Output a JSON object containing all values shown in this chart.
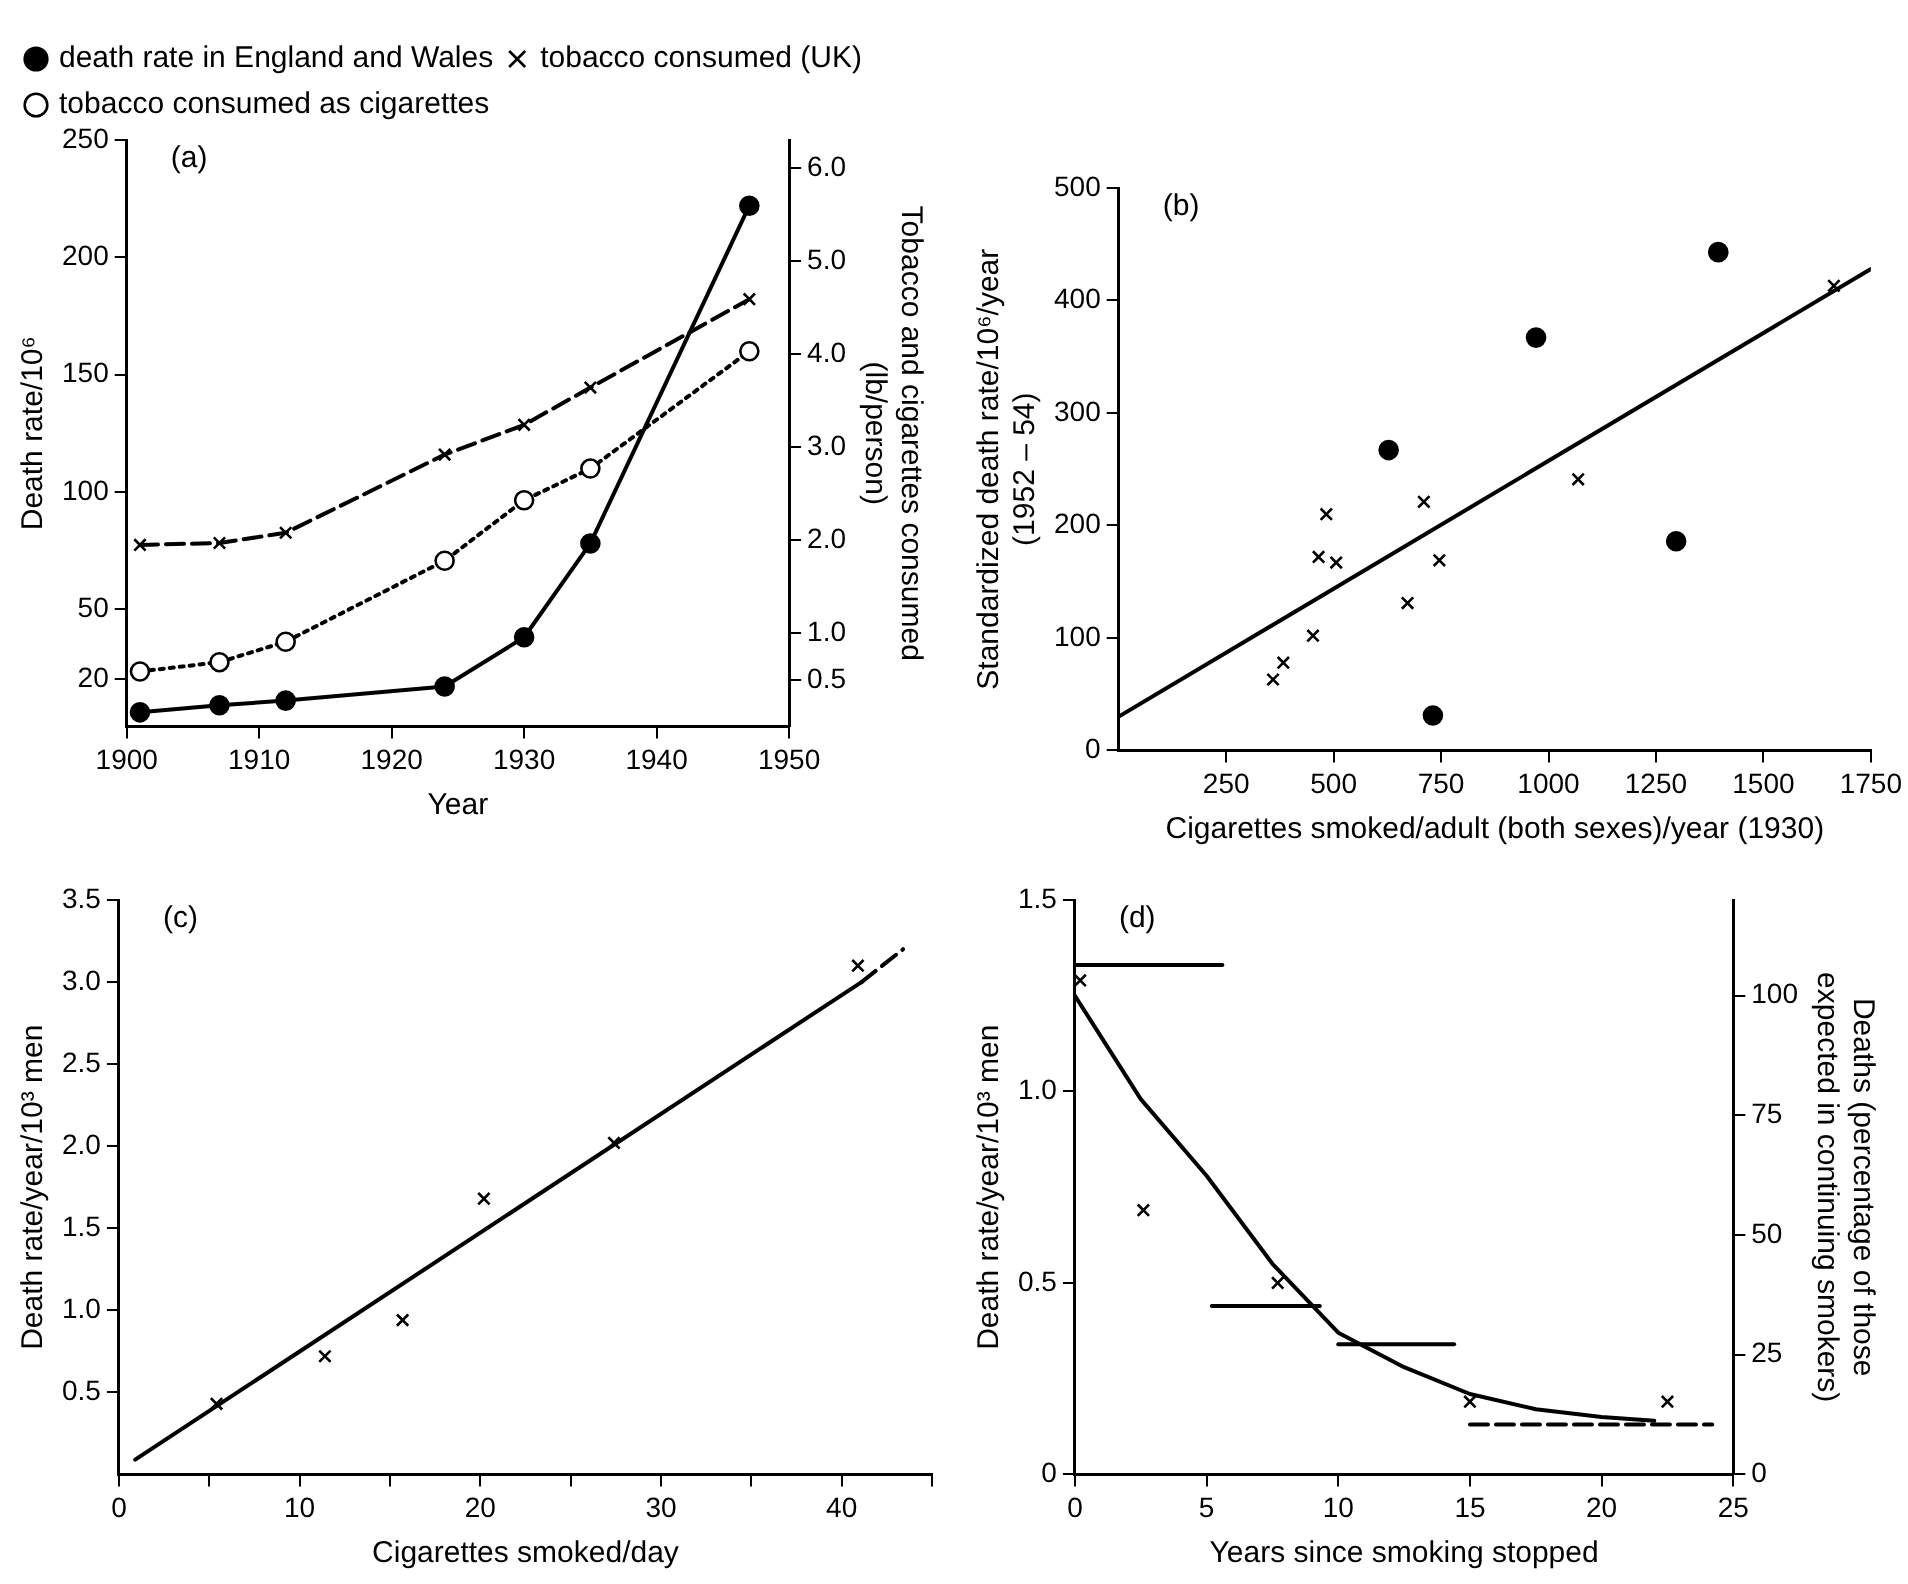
{
  "chart_data": [
    {
      "type": "line",
      "xlabel": "Year",
      "ylabel": "Death rate/10⁶",
      "y2label": "Tobacco and cigarettes consumed\n(lb/person)",
      "annotations": [
        "(a)"
      ],
      "xlim": [
        1900,
        1950
      ],
      "xticks": [
        1900,
        1910,
        1920,
        1930,
        1940,
        1950
      ],
      "ylim": [
        0,
        250
      ],
      "yticks": [
        20,
        50,
        100,
        150,
        200,
        250
      ],
      "y2lim": [
        0,
        6.3
      ],
      "y2ticks": [
        0.5,
        {
          "value": 1,
          "label": "1.0"
        },
        {
          "value": 2,
          "label": "2.0"
        },
        {
          "value": 3,
          "label": "3.0"
        },
        {
          "value": 4,
          "label": "4.0"
        },
        {
          "value": 5,
          "label": "5.0"
        },
        {
          "value": 6,
          "label": "6.0"
        }
      ],
      "grid": false,
      "legend": "top left",
      "series": [
        {
          "name": "death rate in England and Wales",
          "color": "#000000",
          "marker": "circle",
          "line_style": "solid",
          "x": [
            1901,
            1907,
            1912,
            1924,
            1930,
            1935,
            1947
          ],
          "values": [
            6,
            9,
            11,
            17,
            38,
            78,
            222
          ]
        },
        {
          "name": "tobacco consumed (UK)",
          "color": "#000000",
          "marker": "cross",
          "line_style": "dashed",
          "axis": "y2",
          "x": [
            1901,
            1907,
            1912,
            1924,
            1930,
            1935,
            1947
          ],
          "values": [
            1.95,
            1.97,
            2.08,
            2.92,
            3.24,
            3.64,
            4.59
          ]
        },
        {
          "name": "tobacco consumed as cigarettes",
          "color": "#000000",
          "marker": "circle_open",
          "line_style": "dotted",
          "axis": "y2",
          "x": [
            1901,
            1907,
            1912,
            1924,
            1930,
            1935,
            1947
          ],
          "values": [
            0.59,
            0.69,
            0.91,
            1.78,
            2.43,
            2.77,
            4.03
          ]
        }
      ]
    },
    {
      "type": "scatter",
      "xlabel": "Cigarettes smoked/adult (both sexes)/year (1930)",
      "ylabel": "Standardized death rate/10⁶/year\n(1952 – 54)",
      "annotations": [
        "(b)"
      ],
      "xlim": [
        0,
        1750
      ],
      "xticks": [
        250,
        500,
        750,
        1000,
        1250,
        1500,
        1750
      ],
      "ylim": [
        0,
        500
      ],
      "yticks": [
        0,
        100,
        200,
        300,
        400,
        500
      ],
      "grid": false,
      "series": [
        {
          "color": "#000000",
          "marker": "circle",
          "x": [
            628,
            971,
            1395,
            1297,
            731
          ],
          "values": [
            267,
            367,
            443,
            186,
            31
          ]
        },
        {
          "color": "#000000",
          "marker": "cross",
          "x": [
            359,
            383,
            452,
            465,
            483,
            506,
            672,
            710,
            746,
            1069,
            1664
          ],
          "values": [
            63,
            78,
            102,
            172,
            210,
            167,
            131,
            221,
            169,
            241,
            413
          ]
        },
        {
          "type": "line",
          "color": "#000000",
          "marker": "none",
          "line_style": "solid",
          "x": [
            0,
            1750
          ],
          "values": [
            30,
            428
          ]
        }
      ]
    },
    {
      "type": "scatter",
      "xlabel": "Cigarettes smoked/day",
      "ylabel": "Death rate/year/10³ men",
      "annotations": [
        "(c)"
      ],
      "xlim": [
        0,
        45
      ],
      "xticks": [
        0,
        {
          "value": 5,
          "label": null
        },
        10,
        {
          "value": 15,
          "label": null
        },
        20,
        {
          "value": 25,
          "label": null
        },
        30,
        {
          "value": 35,
          "label": null
        },
        40,
        {
          "value": 45,
          "label": null
        }
      ],
      "ylim": [
        0,
        3.5
      ],
      "yticks": [
        0.5,
        {
          "value": 1,
          "label": "1.0"
        },
        1.5,
        {
          "value": 2,
          "label": "2.0"
        },
        2.5,
        {
          "value": 3,
          "label": "3.0"
        },
        3.5
      ],
      "grid": false,
      "series": [
        {
          "color": "#000000",
          "marker": "cross",
          "x": [
            5.4,
            11.4,
            15.7,
            20.2,
            27.4,
            40.9
          ],
          "values": [
            0.43,
            0.72,
            0.94,
            1.68,
            2.02,
            3.1
          ]
        },
        {
          "type": "line",
          "color": "#000000",
          "marker": "none",
          "line_style": "solid",
          "x": [
            0.9,
            41.1
          ],
          "values": [
            0.09,
            3.0
          ]
        },
        {
          "type": "line",
          "color": "#000000",
          "marker": "none",
          "line_style": "dashed",
          "x": [
            41.1,
            43.4
          ],
          "values": [
            3.0,
            3.2
          ]
        }
      ]
    },
    {
      "type": "scatter",
      "xlabel": "Years since smoking stopped",
      "ylabel": "Death rate/year/10³ men",
      "y2label": "Deaths (percentage of those\nexpected in continuing smokers)",
      "annotations": [
        "(d)"
      ],
      "xlim": [
        0,
        25
      ],
      "xticks": [
        0,
        5,
        10,
        15,
        20,
        25
      ],
      "ylim": [
        0,
        1.5
      ],
      "yticks": [
        0,
        0.5,
        {
          "value": 1,
          "label": "1.0"
        },
        1.5
      ],
      "y2lim": [
        0,
        120
      ],
      "y2ticks": [
        0,
        25,
        50,
        75,
        100
      ],
      "grid": false,
      "series": [
        {
          "color": "#000000",
          "marker": "cross",
          "x": [
            0.2,
            2.6,
            7.7,
            15,
            22.5
          ],
          "values": [
            1.29,
            0.69,
            0.5,
            0.19,
            0.19
          ]
        },
        {
          "type": "line",
          "color": "#000000",
          "marker": "none",
          "line_style": "solid",
          "x": [
            0,
            5.6
          ],
          "values": [
            1.33,
            1.33
          ]
        },
        {
          "type": "line",
          "color": "#000000",
          "marker": "none",
          "line_style": "solid",
          "x": [
            5.2,
            9.3
          ],
          "values": [
            0.44,
            0.44
          ]
        },
        {
          "type": "line",
          "color": "#000000",
          "marker": "none",
          "line_style": "solid",
          "x": [
            10,
            14.4
          ],
          "values": [
            0.34,
            0.34
          ]
        },
        {
          "type": "line",
          "color": "#000000",
          "marker": "none",
          "line_style": "dashed",
          "x": [
            15,
            24.2
          ],
          "values": [
            0.13,
            0.13
          ]
        },
        {
          "type": "line",
          "color": "#000000",
          "marker": "none",
          "line_style": "solid",
          "x": [
            0,
            2.5,
            5,
            7.5,
            10,
            12.5,
            15,
            17.5,
            20,
            22
          ],
          "values": [
            1.25,
            0.98,
            0.78,
            0.55,
            0.37,
            0.28,
            0.21,
            0.17,
            0.15,
            0.14
          ]
        }
      ]
    }
  ]
}
